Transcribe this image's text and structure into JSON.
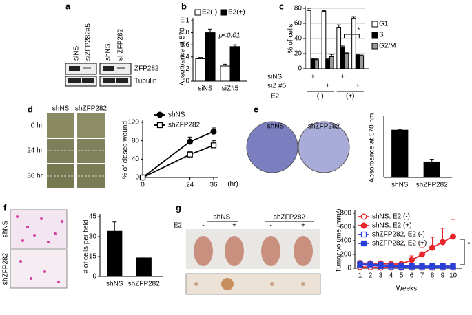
{
  "blot": {
    "panel": "a",
    "lanes": [
      "siNS",
      "siZFP282#5",
      "shNS",
      "shZFP282"
    ],
    "bands": [
      "ZFP282",
      "Tubulin"
    ]
  },
  "chart_data": [
    {
      "type": "bar",
      "panel": "b",
      "ylabel": "Absorbance at 570 nm",
      "categories": [
        "siNS",
        "siZ#5"
      ],
      "series": [
        {
          "name": "E2(-)",
          "color": "#ffffff",
          "values": [
            0.37,
            0.25
          ],
          "errors": [
            0.02,
            0.03
          ]
        },
        {
          "name": "E2(+)",
          "color": "#000000",
          "values": [
            0.8,
            0.57
          ],
          "errors": [
            0.06,
            0.03
          ]
        }
      ],
      "ylim": [
        0,
        1
      ],
      "yticks": [
        0,
        0.2,
        0.4,
        0.6,
        0.8,
        1
      ],
      "annotation": "p<0.01"
    },
    {
      "type": "bar",
      "panel": "c",
      "ylabel": "% of cells",
      "categories": [
        null,
        null,
        null,
        null
      ],
      "series": [
        {
          "name": "G1",
          "color": "#ffffff",
          "values": [
            77,
            76,
            55,
            67
          ],
          "errors": [
            3,
            1,
            3,
            2
          ]
        },
        {
          "name": "S",
          "color": "#000000",
          "values": [
            13,
            12,
            28,
            18
          ],
          "errors": [
            1,
            1,
            2,
            1
          ]
        },
        {
          "name": "G2/M",
          "color": "#999999",
          "values": [
            12,
            16,
            20,
            17
          ],
          "errors": [
            1,
            3,
            1,
            1
          ]
        }
      ],
      "ylim": [
        0,
        80
      ],
      "yticks": [
        0,
        20,
        40,
        60,
        80
      ],
      "grid": true,
      "annotation": "*",
      "rows": [
        {
          "label": "siNS",
          "marks": [
            "+",
            null,
            "+",
            null
          ]
        },
        {
          "label": "siZ #5",
          "marks": [
            null,
            "+",
            null,
            "+"
          ]
        }
      ],
      "condition": {
        "label": "E2",
        "groups": [
          "(-)",
          "(+)"
        ]
      }
    },
    {
      "type": "line",
      "panel": "d",
      "ylabel": "% of closed wound",
      "xlabel": "(hr)",
      "x": [
        0,
        24,
        36
      ],
      "xlim": [
        0,
        36
      ],
      "xticks": [
        0,
        24,
        36
      ],
      "ylim": [
        0,
        120
      ],
      "yticks": [
        0,
        40,
        80,
        120
      ],
      "series": [
        {
          "name": "shNS",
          "color": "#000000",
          "marker": "circle",
          "filled": true,
          "values": [
            0,
            78,
            100
          ],
          "errors": [
            0,
            10,
            8
          ]
        },
        {
          "name": "shZFP282",
          "color": "#000000",
          "marker": "square",
          "filled": false,
          "values": [
            0,
            50,
            70
          ],
          "errors": [
            0,
            6,
            10
          ]
        }
      ],
      "image_labels": [
        "shNS",
        "shZFP282",
        "0 hr",
        "24 hr",
        "36 hr"
      ]
    },
    {
      "type": "bar",
      "panel": "e",
      "ylabel": "Absorbance at 570 nm",
      "categories": [
        "shNS",
        "shZFP282"
      ],
      "values": [
        3.2,
        1.05
      ],
      "errors": [
        0.05,
        0.18
      ],
      "color": "#000000",
      "ylim": [
        0,
        4
      ],
      "image_labels": [
        "shNS",
        "shZFP282"
      ]
    },
    {
      "type": "bar",
      "panel": "f",
      "ylabel": "# of cells per field",
      "categories": [
        "shNS",
        "shZFP282"
      ],
      "values": [
        34,
        14
      ],
      "errors": [
        7,
        0
      ],
      "color": "#000000",
      "ylim": [
        0,
        45
      ],
      "yticks": [
        0,
        15,
        30,
        45
      ],
      "image_labels": [
        "shNS",
        "shZFP282"
      ]
    },
    {
      "type": "line",
      "panel": "g",
      "ylabel": "Tumor volume (mm³)",
      "xlabel": "Weeks",
      "x": [
        1,
        2,
        3,
        4,
        5,
        6,
        7,
        8,
        9,
        10
      ],
      "xlim": [
        0.5,
        10.5
      ],
      "xticks": [
        1,
        2,
        3,
        4,
        5,
        6,
        7,
        8,
        9,
        10
      ],
      "ylim": [
        0,
        800
      ],
      "yticks": [
        0,
        200,
        400,
        600,
        800
      ],
      "annotation": "*",
      "series": [
        {
          "name": "shNS, E2 (-)",
          "color": "#e8262a",
          "marker": "circle",
          "filled": false,
          "values": [
            20,
            15,
            10,
            10,
            10,
            10,
            10,
            10,
            10,
            10
          ]
        },
        {
          "name": "shNS, E2 (+)",
          "color": "#e8262a",
          "marker": "circle",
          "filled": true,
          "values": [
            75,
            70,
            70,
            60,
            60,
            120,
            200,
            300,
            380,
            460
          ],
          "errors": [
            30,
            30,
            25,
            20,
            20,
            60,
            100,
            150,
            200,
            250
          ]
        },
        {
          "name": "shZFP282, E2 (-)",
          "color": "#2a3fd8",
          "marker": "square",
          "filled": false,
          "values": [
            50,
            40,
            30,
            25,
            20,
            15,
            15,
            15,
            15,
            15
          ]
        },
        {
          "name": "shZFP282, E2 (+)",
          "color": "#2a3fd8",
          "marker": "square",
          "filled": true,
          "values": [
            60,
            55,
            50,
            40,
            35,
            30,
            30,
            30,
            30,
            30
          ]
        }
      ],
      "image_labels": [
        "shNS",
        "shZFP282",
        "E2",
        "-",
        "+",
        "-",
        "+"
      ]
    }
  ]
}
